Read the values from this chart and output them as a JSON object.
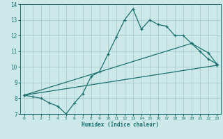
{
  "xlabel": "Humidex (Indice chaleur)",
  "xlim": [
    -0.5,
    23.5
  ],
  "ylim": [
    7,
    14
  ],
  "xticks": [
    0,
    1,
    2,
    3,
    4,
    5,
    6,
    7,
    8,
    9,
    10,
    11,
    12,
    13,
    14,
    15,
    16,
    17,
    18,
    19,
    20,
    21,
    22,
    23
  ],
  "yticks": [
    7,
    8,
    9,
    10,
    11,
    12,
    13,
    14
  ],
  "background_color": "#cce8e8",
  "line_color": "#1a7070",
  "grid_color": "#aacccc",
  "line1_x": [
    0,
    1,
    2,
    3,
    4,
    5,
    6,
    7,
    8,
    9,
    10,
    11,
    12,
    13,
    14,
    15,
    16,
    17,
    18,
    19,
    20,
    21,
    22,
    23
  ],
  "line1_y": [
    8.2,
    8.1,
    8.0,
    7.7,
    7.5,
    7.0,
    7.7,
    8.3,
    9.4,
    9.7,
    10.8,
    11.9,
    13.0,
    13.7,
    12.4,
    13.0,
    12.7,
    12.6,
    12.0,
    12.0,
    11.5,
    11.0,
    10.5,
    10.2
  ],
  "line2_x": [
    0,
    20,
    22,
    23
  ],
  "line2_y": [
    8.2,
    11.5,
    10.9,
    10.2
  ],
  "line3_x": [
    0,
    23
  ],
  "line3_y": [
    8.2,
    10.1
  ]
}
